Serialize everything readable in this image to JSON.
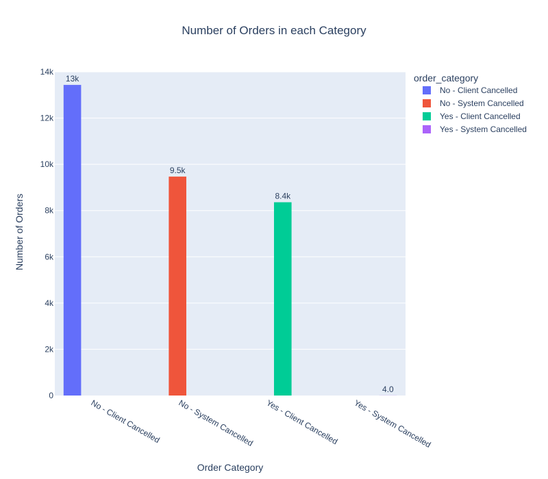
{
  "chart_data": {
    "type": "bar",
    "title": "Number of Orders in each Category",
    "xlabel": "Order Category",
    "ylabel": "Number of Orders",
    "ylim": [
      0,
      14000
    ],
    "yticks": [
      0,
      2000,
      4000,
      6000,
      8000,
      10000,
      12000,
      14000
    ],
    "ytick_labels": [
      "0",
      "2k",
      "4k",
      "6k",
      "8k",
      "10k",
      "12k",
      "14k"
    ],
    "grid": true,
    "categories": [
      "No - Client Cancelled",
      "No - System Cancelled",
      "Yes - Client Cancelled",
      "Yes - System Cancelled"
    ],
    "legend": {
      "title": "order_category",
      "placement": "top-right"
    },
    "series": [
      {
        "name": "No - Client Cancelled",
        "category": "No - Client Cancelled",
        "value": 13435,
        "label": "13k",
        "color": "#636efa"
      },
      {
        "name": "No - System Cancelled",
        "category": "No - System Cancelled",
        "value": 9469,
        "label": "9.5k",
        "color": "#ef553b"
      },
      {
        "name": "Yes - Client Cancelled",
        "category": "Yes - Client Cancelled",
        "value": 8360,
        "label": "8.4k",
        "color": "#00cc96"
      },
      {
        "name": "Yes - System Cancelled",
        "category": "Yes - System Cancelled",
        "value": 4,
        "label": "4.0",
        "color": "#ab63fa"
      }
    ]
  }
}
